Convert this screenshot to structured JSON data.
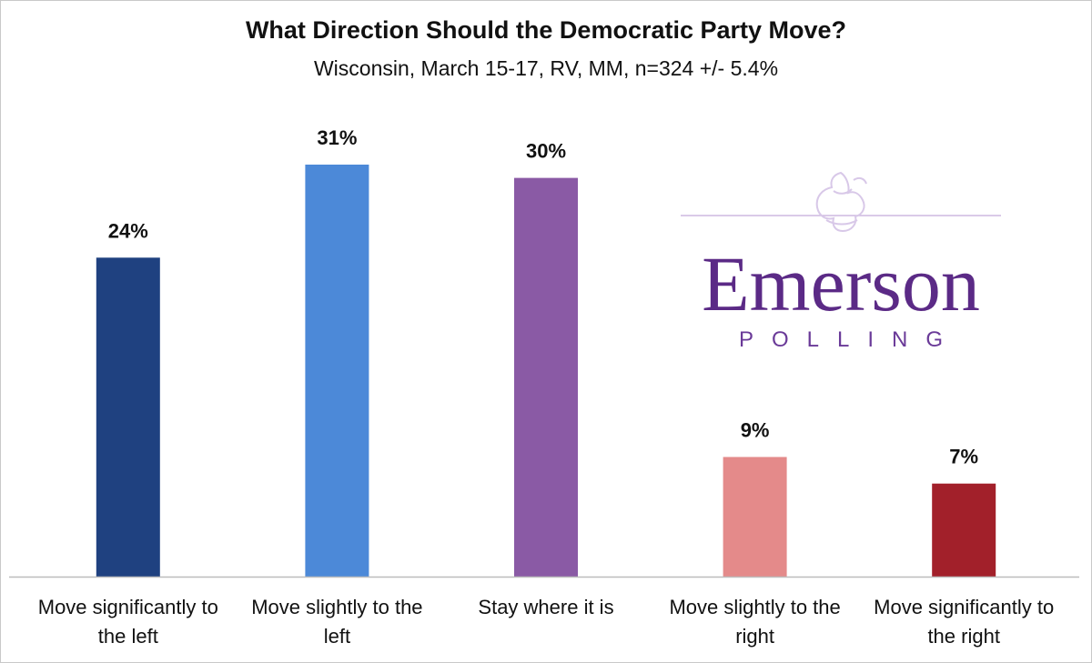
{
  "chart_data": {
    "type": "bar",
    "title": "What Direction Should the Democratic Party Move?",
    "subtitle": "Wisconsin,  March 15-17, RV, MM, n=324 +/- 5.4%",
    "categories": [
      [
        "Move significantly to",
        "the left"
      ],
      [
        "Move slightly to the",
        "left"
      ],
      [
        "Stay where it is"
      ],
      [
        "Move slightly to the",
        "right"
      ],
      [
        "Move significantly to",
        "the right"
      ]
    ],
    "values": [
      24,
      31,
      30,
      9,
      7
    ],
    "data_labels": [
      "24%",
      "31%",
      "30%",
      "9%",
      "7%"
    ],
    "colors": [
      "#1f4180",
      "#4c89d8",
      "#8a5aa5",
      "#e48a8a",
      "#a2202a"
    ],
    "ylim": [
      0,
      31
    ],
    "xlabel": "",
    "ylabel": "",
    "grid": false,
    "legend": "none"
  },
  "logo": {
    "word": "Emerson",
    "sub": "POLLING",
    "color": "#5b2a86"
  }
}
